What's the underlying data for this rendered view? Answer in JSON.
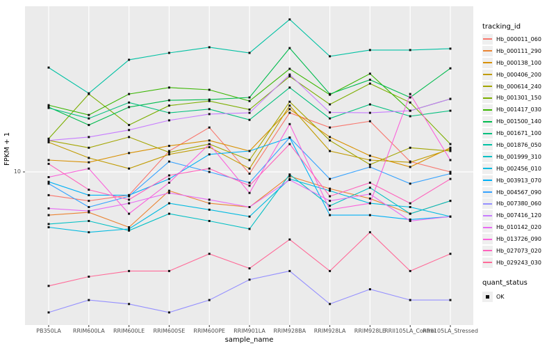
{
  "figure": {
    "xlabel": "sample_name",
    "ylabel": "FPKM + 1",
    "y_tick_label": "10"
  },
  "legend": {
    "tracking_title": "tracking_id",
    "quant_title": "quant_status",
    "ok_label": "OK"
  },
  "colors": {
    "panel_bg": "#EBEBEB",
    "gridline": "#FFFFFF",
    "tick_text": "#4d4d4d",
    "marker": "#111111",
    "legend_key_bg": "#EFEFEF"
  },
  "chart_data": {
    "type": "line",
    "title": "",
    "xlabel": "sample_name",
    "ylabel": "FPKM + 1",
    "yscale": "log10",
    "ylim": [
      1.8,
      70
    ],
    "ytick_values": [
      10
    ],
    "ytick_labels": [
      "10"
    ],
    "grid": "grey panel, white vertical gridline per category, white line at y=10",
    "legend_position": "right",
    "marker": "black-square",
    "categories": [
      "PB350LA",
      "RRIM600LA",
      "RRIM600LE",
      "RRIM600SE",
      "RRIM600PE",
      "RRIM901LA",
      "RRIM928BA",
      "RRIM928LA",
      "RRIM928LE",
      "RRII105LA_Control",
      "RRII105LA_Stressed"
    ],
    "quant_status": {
      "title": "quant_status",
      "items": [
        "OK"
      ]
    },
    "series": [
      {
        "name": "Hb_000011_060",
        "color": "#F8766D",
        "values": [
          7.6,
          7.1,
          7.6,
          12.8,
          16.9,
          9.8,
          20.1,
          16.9,
          18.2,
          11.3,
          10.0
        ]
      },
      {
        "name": "Hb_000111_290",
        "color": "#EA8331",
        "values": [
          6.0,
          6.2,
          5.2,
          8.0,
          6.9,
          6.6,
          9.5,
          8.2,
          7.3,
          6.1,
          7.1
        ]
      },
      {
        "name": "Hb_000138_100",
        "color": "#D89000",
        "values": [
          11.5,
          11.2,
          12.5,
          13.6,
          14.5,
          12.8,
          21.0,
          15.1,
          12.1,
          10.6,
          13.3
        ]
      },
      {
        "name": "Hb_000406_200",
        "color": "#C09B00",
        "values": [
          14.2,
          11.8,
          10.4,
          12.3,
          13.4,
          10.4,
          21.9,
          12.8,
          11.5,
          11.2,
          13.1
        ]
      },
      {
        "name": "Hb_000614_240",
        "color": "#A3A500",
        "values": [
          14.5,
          13.3,
          15.1,
          12.6,
          13.9,
          11.5,
          22.9,
          14.5,
          10.9,
          13.3,
          12.8
        ]
      },
      {
        "name": "Hb_001301_150",
        "color": "#7CAE00",
        "values": [
          14.8,
          25.1,
          17.4,
          21.9,
          23.1,
          20.9,
          30.9,
          22.2,
          28.4,
          22.7,
          13.9
        ]
      },
      {
        "name": "Hb_001417_030",
        "color": "#39B600",
        "values": [
          22.0,
          19.6,
          25.1,
          27.1,
          26.4,
          23.1,
          33.8,
          24.9,
          31.9,
          20.6,
          23.7
        ]
      },
      {
        "name": "Hb_001500_140",
        "color": "#00BB4E",
        "values": [
          21.5,
          17.4,
          21.5,
          23.3,
          23.5,
          24.1,
          43.2,
          25.1,
          29.7,
          24.1,
          34.0
        ]
      },
      {
        "name": "Hb_001671_100",
        "color": "#00BF7D",
        "values": [
          21.3,
          18.8,
          22.7,
          20.1,
          21.0,
          18.5,
          27.1,
          18.8,
          22.2,
          19.3,
          20.6
        ]
      },
      {
        "name": "Hb_001876_050",
        "color": "#00C1A3",
        "values": [
          34.3,
          25.3,
          37.6,
          40.8,
          43.6,
          40.8,
          60.6,
          39.2,
          42.2,
          42.2,
          42.9
        ]
      },
      {
        "name": "Hb_001999_310",
        "color": "#00BFC4",
        "values": [
          5.4,
          5.6,
          5.0,
          6.1,
          5.6,
          5.1,
          9.7,
          6.7,
          8.3,
          6.1,
          7.1
        ]
      },
      {
        "name": "Hb_002456_010",
        "color": "#00BAE0",
        "values": [
          5.2,
          4.9,
          5.1,
          6.9,
          6.4,
          5.9,
          9.2,
          8.0,
          6.9,
          6.6,
          5.9
        ]
      },
      {
        "name": "Hb_003913_070",
        "color": "#00B0F6",
        "values": [
          8.9,
          7.6,
          7.6,
          9.2,
          12.3,
          12.8,
          15.0,
          6.0,
          6.0,
          5.7,
          5.9
        ]
      },
      {
        "name": "Hb_004567_090",
        "color": "#35A2FF",
        "values": [
          8.7,
          6.6,
          7.5,
          11.3,
          10.0,
          8.8,
          15.0,
          9.2,
          10.6,
          8.7,
          9.8
        ]
      },
      {
        "name": "Hb_007380_060",
        "color": "#9590FF",
        "values": [
          1.9,
          2.2,
          2.1,
          1.9,
          2.2,
          2.8,
          3.1,
          2.1,
          2.5,
          2.2,
          2.2
        ]
      },
      {
        "name": "Hb_007416_120",
        "color": "#C77CFF",
        "values": [
          14.5,
          15.1,
          16.4,
          18.4,
          19.8,
          20.1,
          31.6,
          20.2,
          20.1,
          20.6,
          23.7
        ]
      },
      {
        "name": "Hb_010142_020",
        "color": "#E76BF3",
        "values": [
          6.5,
          6.3,
          6.9,
          7.8,
          7.2,
          6.6,
          9.1,
          7.1,
          7.7,
          5.6,
          5.9
        ]
      },
      {
        "name": "Hb_013726_090",
        "color": "#FA62DB",
        "values": [
          9.4,
          10.4,
          6.1,
          8.8,
          13.9,
          7.8,
          17.6,
          6.4,
          6.9,
          25.1,
          11.5
        ]
      },
      {
        "name": "Hb_027073_020",
        "color": "#FF62BC",
        "values": [
          11.0,
          8.1,
          7.2,
          9.6,
          10.4,
          8.5,
          13.9,
          7.5,
          8.8,
          6.9,
          9.2
        ]
      },
      {
        "name": "Hb_029243_030",
        "color": "#FF6A98",
        "values": [
          2.6,
          2.9,
          3.1,
          3.1,
          3.8,
          3.2,
          4.5,
          3.1,
          4.9,
          3.1,
          3.8
        ]
      }
    ]
  }
}
